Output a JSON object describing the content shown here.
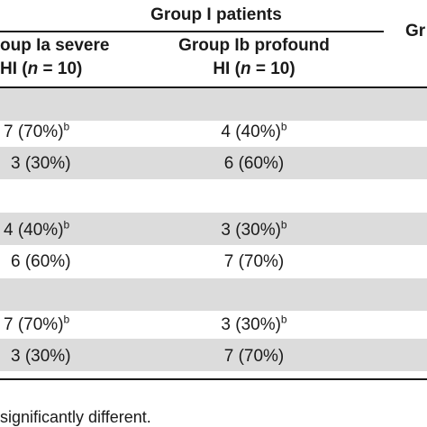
{
  "header": {
    "group1_label": "Group I patients",
    "group2_partial": "Gr",
    "col_a_line1": "oup Ia severe",
    "col_a_line2_prefix": "HI (",
    "col_b_line1": "Group Ib profound",
    "col_b_line2_prefix": "HI (",
    "n_symbol": "n",
    "n_suffix": " = 10)"
  },
  "rows": [
    {
      "a": "7 (70%)",
      "a_sup": "b",
      "b": "4 (40%)",
      "b_sup": "b"
    },
    {
      "a": "3 (30%)",
      "a_sup": "",
      "b": "6 (60%)",
      "b_sup": ""
    },
    {
      "a": "4 (40%)",
      "a_sup": "b",
      "b": "3 (30%)",
      "b_sup": "b"
    },
    {
      "a": "6 (60%)",
      "a_sup": "",
      "b": "7 (70%)",
      "b_sup": ""
    },
    {
      "a": "7 (70%)",
      "a_sup": "b",
      "b": "3 (30%)",
      "b_sup": "b"
    },
    {
      "a": "3 (30%)",
      "a_sup": "",
      "b": "7 (70%)",
      "b_sup": ""
    }
  ],
  "footnote": "significantly different.",
  "colors": {
    "band": "#dcdcdc",
    "text": "#1a1a1a",
    "rule": "#1a1a1a"
  }
}
